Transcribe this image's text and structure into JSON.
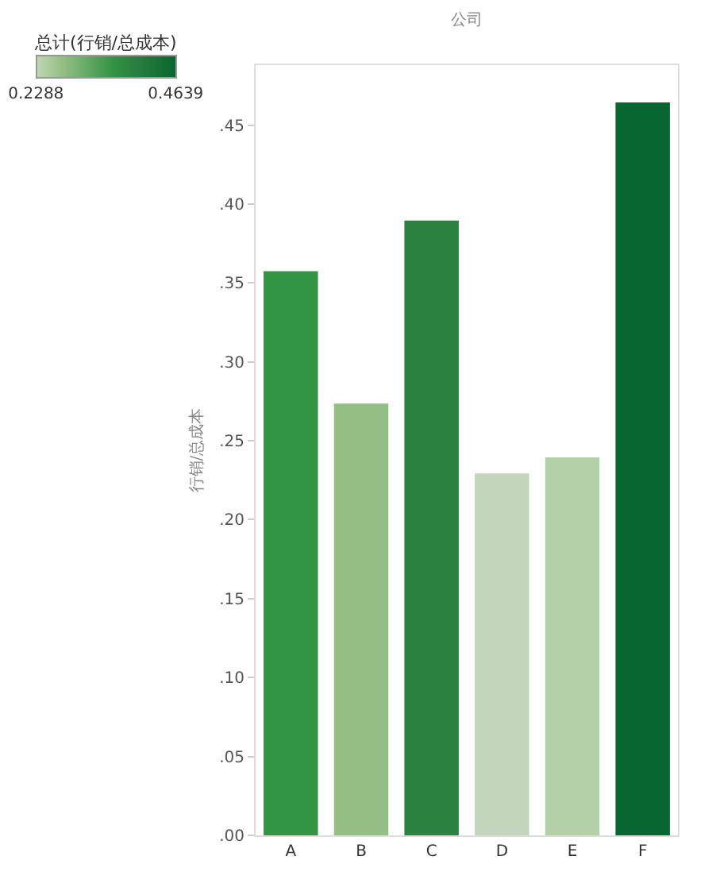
{
  "chart_data": {
    "type": "bar",
    "title": "公司",
    "ylabel": "行销/总成本",
    "clabel": "总计(行销/总成本)",
    "categories": [
      "A",
      "B",
      "C",
      "D",
      "E",
      "F"
    ],
    "values": [
      0.357,
      0.273,
      0.389,
      0.2288,
      0.239,
      0.4639
    ],
    "colors": [
      "#339444",
      "#94bf84",
      "#2a8340",
      "#c3d6bb",
      "#b5d1a9",
      "#0a6630"
    ],
    "clim": [
      0.2288,
      0.4639
    ],
    "cticks": [
      0.2288,
      0.4639
    ],
    "ylim": [
      0,
      0.488
    ],
    "yticks": [
      {
        "value": 0,
        "label": ".00"
      },
      {
        "value": 0.05,
        "label": ".05"
      },
      {
        "value": 0.1,
        "label": ".10"
      },
      {
        "value": 0.15,
        "label": ".15"
      },
      {
        "value": 0.2,
        "label": ".20"
      },
      {
        "value": 0.25,
        "label": ".25"
      },
      {
        "value": 0.3,
        "label": ".30"
      },
      {
        "value": 0.35,
        "label": ".35"
      },
      {
        "value": 0.4,
        "label": ".40"
      },
      {
        "value": 0.45,
        "label": ".45"
      }
    ],
    "grid": false,
    "legend": false
  }
}
